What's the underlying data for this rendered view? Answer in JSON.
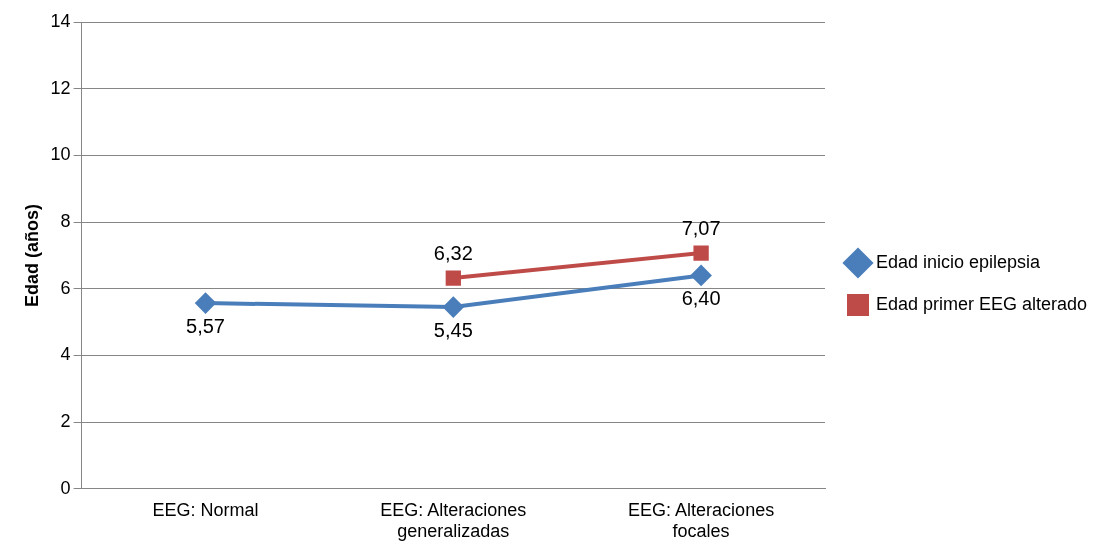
{
  "chart_data": {
    "type": "line",
    "ylabel": "Edad (años)",
    "categories": [
      "EEG: Normal",
      "EEG: Alteraciones generalizadas",
      "EEG: Alteraciones focales"
    ],
    "series": [
      {
        "name": "Edad inicio epilepsia",
        "color": "#4a7ebb",
        "marker": "diamond",
        "values": [
          5.57,
          5.45,
          6.4
        ],
        "value_labels": [
          "5,57",
          "5,45",
          "6,40"
        ]
      },
      {
        "name": "Edad primer EEG alterado",
        "color": "#be4b48",
        "marker": "square",
        "values": [
          null,
          6.32,
          7.07
        ],
        "value_labels": [
          null,
          "6,32",
          "7,07"
        ]
      }
    ],
    "ylim": [
      0,
      14
    ],
    "yticks": [
      0,
      2,
      4,
      6,
      8,
      10,
      12,
      14
    ],
    "grid": "y",
    "legend": "right",
    "line_style": "solid"
  }
}
